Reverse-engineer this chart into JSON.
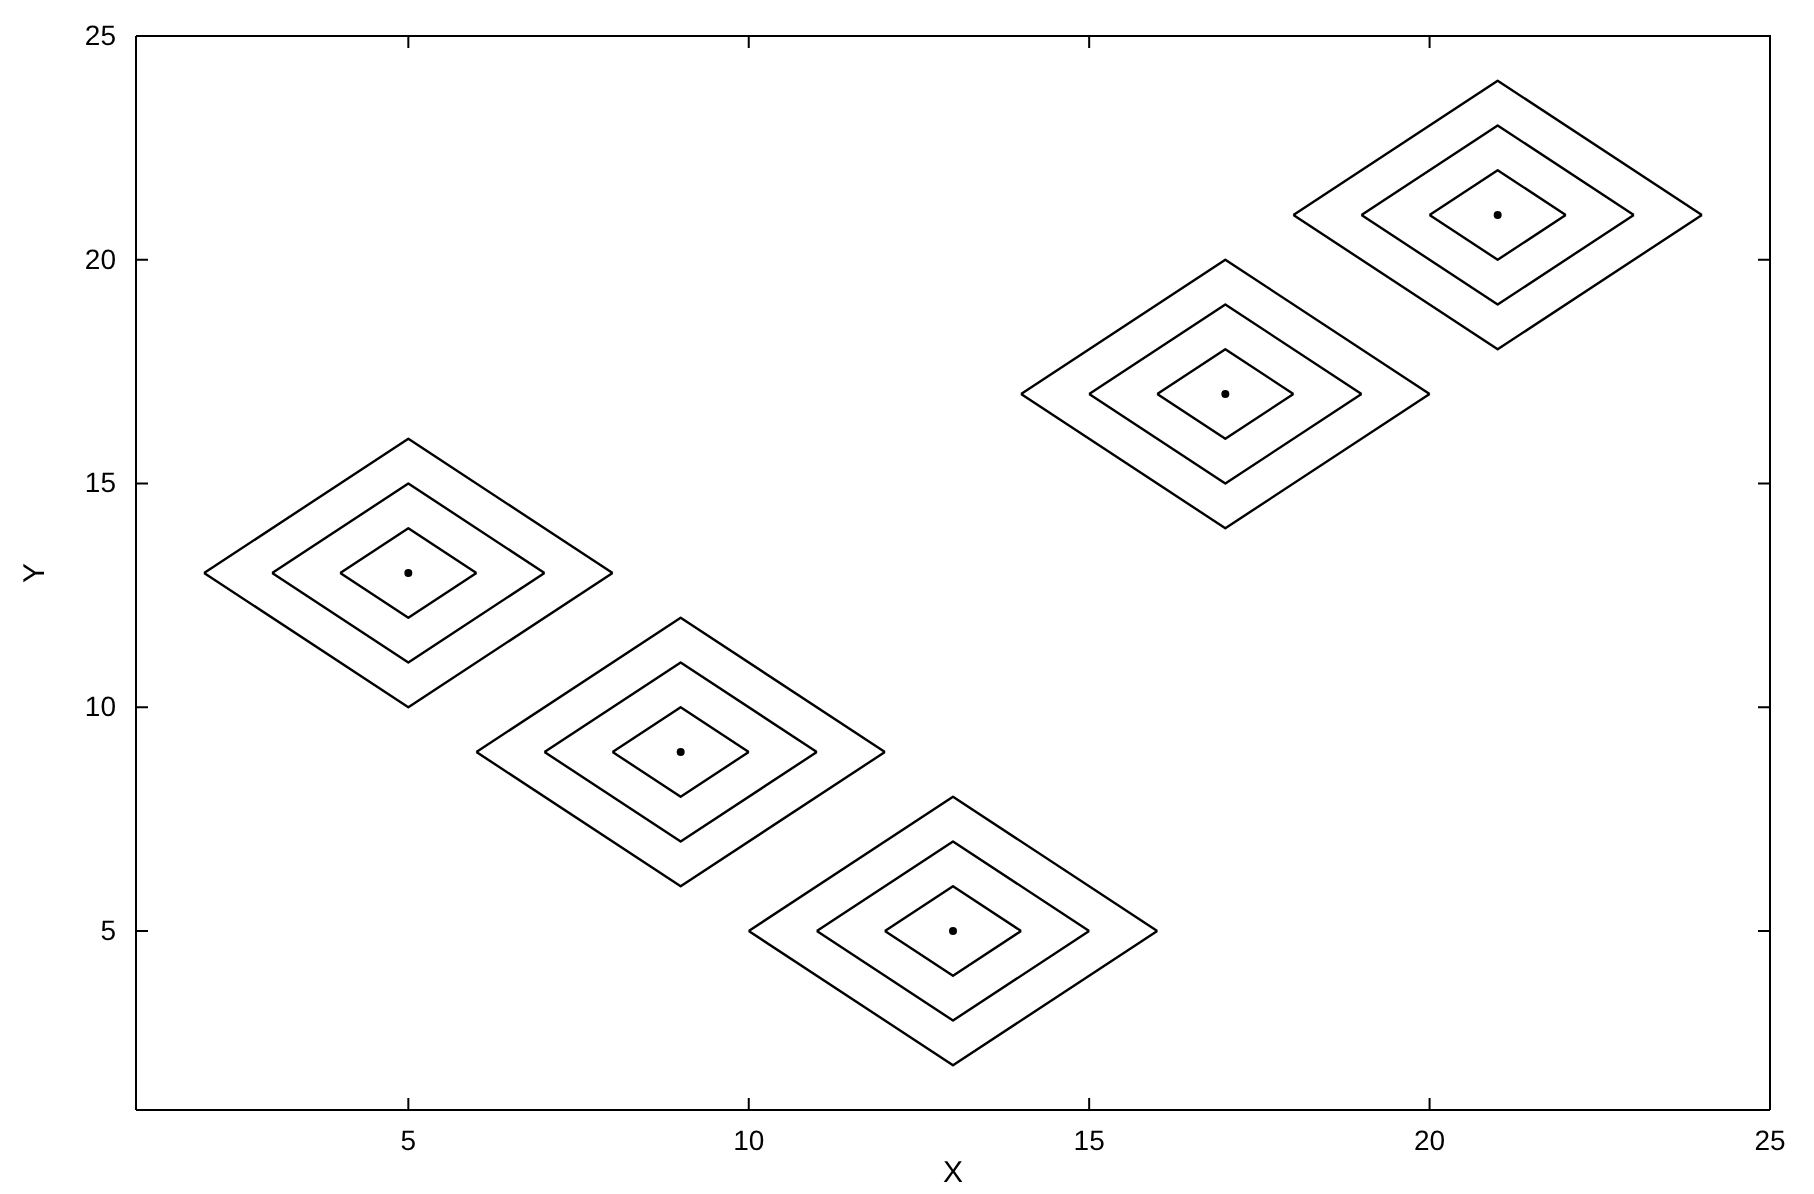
{
  "chart_data": {
    "type": "line",
    "xlabel": "X",
    "ylabel": "Y",
    "xlim": [
      1,
      25
    ],
    "ylim": [
      1,
      25
    ],
    "xticks": [
      5,
      10,
      15,
      20,
      25
    ],
    "yticks": [
      5,
      10,
      15,
      20,
      25
    ],
    "marker": "none",
    "line_style": "solid",
    "series": [
      {
        "color": "#000000",
        "x": [
          4,
          5,
          6
        ],
        "values": [
          13,
          14,
          13
        ]
      },
      {
        "color": "#000000",
        "x": [
          4,
          5,
          6
        ],
        "values": [
          13,
          12,
          13
        ]
      },
      {
        "color": "#000000",
        "x": [
          3,
          5,
          7
        ],
        "values": [
          13,
          15,
          13
        ]
      },
      {
        "color": "#000000",
        "x": [
          3,
          5,
          7
        ],
        "values": [
          13,
          11,
          13
        ]
      },
      {
        "color": "#000000",
        "x": [
          2,
          5,
          8
        ],
        "values": [
          13,
          16,
          13
        ]
      },
      {
        "color": "#000000",
        "x": [
          2,
          5,
          8
        ],
        "values": [
          13,
          10,
          13
        ]
      },
      {
        "color": "#000000",
        "x": [
          8,
          9,
          10
        ],
        "values": [
          9,
          10,
          9
        ]
      },
      {
        "color": "#000000",
        "x": [
          8,
          9,
          10
        ],
        "values": [
          9,
          8,
          9
        ]
      },
      {
        "color": "#000000",
        "x": [
          7,
          9,
          11
        ],
        "values": [
          9,
          11,
          9
        ]
      },
      {
        "color": "#000000",
        "x": [
          7,
          9,
          11
        ],
        "values": [
          9,
          7,
          9
        ]
      },
      {
        "color": "#000000",
        "x": [
          6,
          9,
          12
        ],
        "values": [
          9,
          12,
          9
        ]
      },
      {
        "color": "#000000",
        "x": [
          6,
          9,
          12
        ],
        "values": [
          9,
          6,
          9
        ]
      },
      {
        "color": "#000000",
        "x": [
          12,
          13,
          14
        ],
        "values": [
          5,
          6,
          5
        ]
      },
      {
        "color": "#000000",
        "x": [
          12,
          13,
          14
        ],
        "values": [
          5,
          4,
          5
        ]
      },
      {
        "color": "#000000",
        "x": [
          11,
          13,
          15
        ],
        "values": [
          5,
          7,
          5
        ]
      },
      {
        "color": "#000000",
        "x": [
          11,
          13,
          15
        ],
        "values": [
          5,
          3,
          5
        ]
      },
      {
        "color": "#000000",
        "x": [
          10,
          13,
          16
        ],
        "values": [
          5,
          8,
          5
        ]
      },
      {
        "color": "#000000",
        "x": [
          10,
          13,
          16
        ],
        "values": [
          5,
          2,
          5
        ]
      },
      {
        "color": "#000000",
        "x": [
          16,
          17,
          18
        ],
        "values": [
          17,
          18,
          17
        ]
      },
      {
        "color": "#000000",
        "x": [
          16,
          17,
          18
        ],
        "values": [
          17,
          16,
          17
        ]
      },
      {
        "color": "#000000",
        "x": [
          15,
          17,
          19
        ],
        "values": [
          17,
          19,
          17
        ]
      },
      {
        "color": "#000000",
        "x": [
          15,
          17,
          19
        ],
        "values": [
          17,
          15,
          17
        ]
      },
      {
        "color": "#000000",
        "x": [
          14,
          17,
          20
        ],
        "values": [
          17,
          20,
          17
        ]
      },
      {
        "color": "#000000",
        "x": [
          14,
          17,
          20
        ],
        "values": [
          17,
          14,
          17
        ]
      },
      {
        "color": "#000000",
        "x": [
          20,
          21,
          22
        ],
        "values": [
          21,
          22,
          21
        ]
      },
      {
        "color": "#000000",
        "x": [
          20,
          21,
          22
        ],
        "values": [
          21,
          20,
          21
        ]
      },
      {
        "color": "#000000",
        "x": [
          19,
          21,
          23
        ],
        "values": [
          21,
          23,
          21
        ]
      },
      {
        "color": "#000000",
        "x": [
          19,
          21,
          23
        ],
        "values": [
          21,
          19,
          21
        ]
      },
      {
        "color": "#000000",
        "x": [
          18,
          21,
          24
        ],
        "values": [
          21,
          24,
          21
        ]
      },
      {
        "color": "#000000",
        "x": [
          18,
          21,
          24
        ],
        "values": [
          21,
          18,
          21
        ]
      },
      {
        "type": "scatter",
        "marker": "circle",
        "color": "#000000",
        "x": [
          5,
          9,
          13,
          17,
          21
        ],
        "values": [
          13,
          9,
          5,
          17,
          21
        ]
      }
    ]
  }
}
